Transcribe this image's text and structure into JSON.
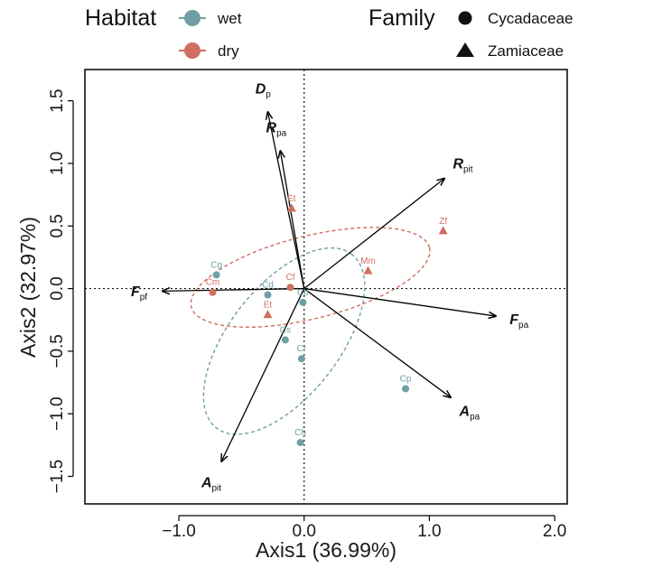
{
  "chart_data": {
    "type": "scatter",
    "subtype": "PCA biplot",
    "xlabel": "Axis1",
    "xlabel_pct": "(36.99%)",
    "ylabel": "Axis2",
    "ylabel_pct": "(32.97%)",
    "xlim": [
      -1.75,
      2.1
    ],
    "ylim": [
      -1.72,
      1.75
    ],
    "xticks": [
      -1.0,
      0.0,
      1.0,
      2.0
    ],
    "xtick_labels": [
      "−1.0",
      "0.0",
      "1.0",
      "2.0"
    ],
    "yticks": [
      -1.5,
      -1.0,
      -0.5,
      0.0,
      0.5,
      1.0,
      1.5
    ],
    "ytick_labels": [
      "−1.5",
      "−1.0",
      "−0.5",
      "0.0",
      "0.5",
      "1.0",
      "1.5"
    ],
    "zero_lines": "dotted",
    "colors": {
      "wet": "#6f9fa4",
      "dry": "#cf6f5f"
    },
    "legend": {
      "habitat_title": "Habitat",
      "habitat_items": [
        {
          "label": "wet",
          "key": "wet"
        },
        {
          "label": "dry",
          "key": "dry"
        }
      ],
      "family_title": "Family",
      "family_items": [
        {
          "label": "Cycadaceae",
          "shape": "circle"
        },
        {
          "label": "Zamiaceae",
          "shape": "triangle"
        }
      ]
    },
    "points": [
      {
        "label": "Cg",
        "x": -0.7,
        "y": 0.11,
        "habitat": "wet",
        "shape": "circle"
      },
      {
        "label": "Cd",
        "x": -0.29,
        "y": -0.05,
        "habitat": "wet",
        "shape": "circle"
      },
      {
        "label": "Cb",
        "x": -0.01,
        "y": -0.11,
        "habitat": "wet",
        "shape": "circle"
      },
      {
        "label": "Cs",
        "x": -0.15,
        "y": -0.41,
        "habitat": "wet",
        "shape": "circle"
      },
      {
        "label": "Cr",
        "x": -0.02,
        "y": -0.56,
        "habitat": "wet",
        "shape": "circle"
      },
      {
        "label": "Cp",
        "x": 0.81,
        "y": -0.8,
        "habitat": "wet",
        "shape": "circle"
      },
      {
        "label": "Ch",
        "x": -0.03,
        "y": -1.23,
        "habitat": "wet",
        "shape": "circle"
      },
      {
        "label": "Cm",
        "x": -0.73,
        "y": -0.03,
        "habitat": "dry",
        "shape": "circle"
      },
      {
        "label": "Cf",
        "x": -0.11,
        "y": 0.01,
        "habitat": "dry",
        "shape": "circle"
      },
      {
        "label": "Et",
        "x": -0.1,
        "y": 0.64,
        "habitat": "dry",
        "shape": "triangle",
        "label_pos": "above"
      },
      {
        "label": "Et",
        "x": -0.29,
        "y": -0.21,
        "habitat": "dry",
        "shape": "triangle"
      },
      {
        "label": "Mm",
        "x": 0.51,
        "y": 0.14,
        "habitat": "dry",
        "shape": "triangle"
      },
      {
        "label": "Zf",
        "x": 1.11,
        "y": 0.46,
        "habitat": "dry",
        "shape": "triangle"
      }
    ],
    "ellipses": [
      {
        "habitat": "wet",
        "cx": -0.16,
        "cy": -0.42,
        "rx": 0.88,
        "ry": 0.44,
        "angle_deg": 52
      },
      {
        "habitat": "dry",
        "cx": 0.05,
        "cy": 0.09,
        "rx": 0.98,
        "ry": 0.33,
        "angle_deg": 14
      }
    ],
    "loadings": [
      {
        "name": "D",
        "sub": "p",
        "x": -0.29,
        "y": 1.41
      },
      {
        "name": "R",
        "sub": "pa",
        "x": -0.19,
        "y": 1.1
      },
      {
        "name": "R",
        "sub": "pit",
        "x": 1.12,
        "y": 0.88
      },
      {
        "name": "F",
        "sub": "pf",
        "x": -1.13,
        "y": -0.02
      },
      {
        "name": "F",
        "sub": "pa",
        "x": 1.53,
        "y": -0.22
      },
      {
        "name": "A",
        "sub": "pa",
        "x": 1.17,
        "y": -0.87
      },
      {
        "name": "A",
        "sub": "pit",
        "x": -0.66,
        "y": -1.38
      }
    ]
  }
}
